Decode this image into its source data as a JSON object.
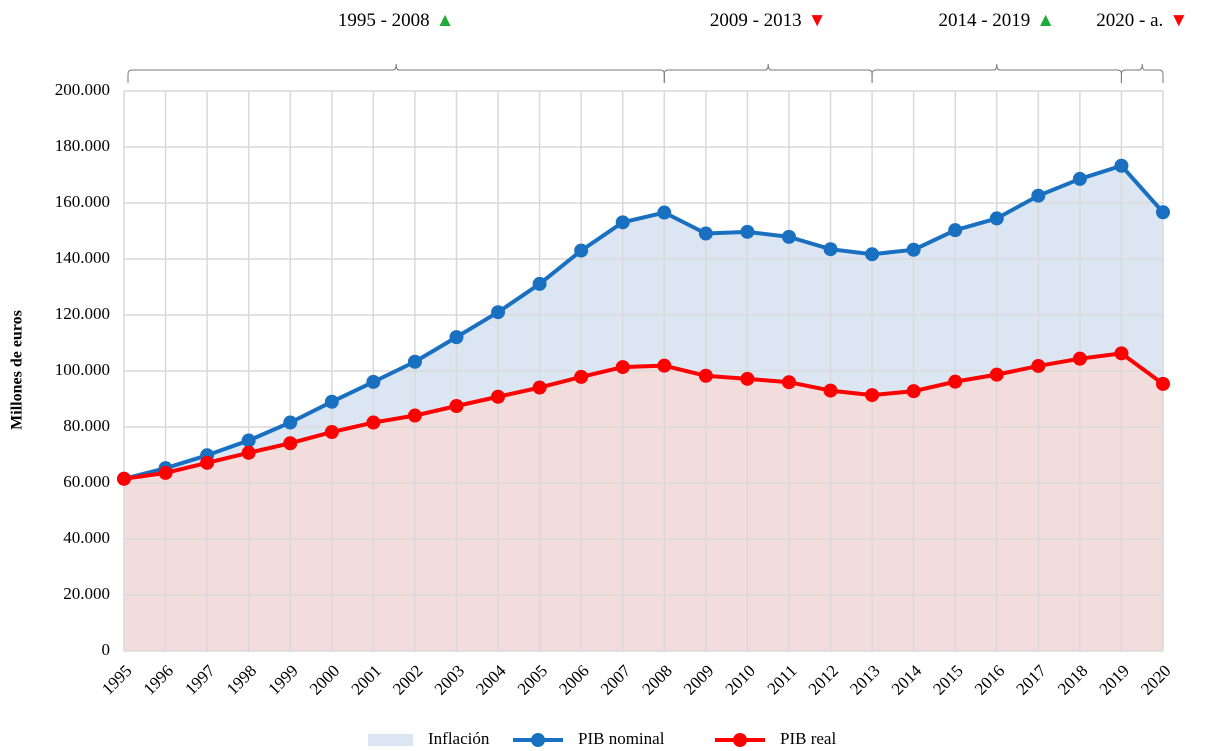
{
  "chart_data": {
    "type": "area-line",
    "y_label": "Millones de euros",
    "periods": [
      {
        "label": "1995 - 2008",
        "arrow": "▲",
        "arrow_color": "#1faa3a"
      },
      {
        "label": "2009 - 2013",
        "arrow": "▼",
        "arrow_color": "#ff0000"
      },
      {
        "label": "2014 - 2019",
        "arrow": "▲",
        "arrow_color": "#1faa3a"
      },
      {
        "label": "2020 - a.",
        "arrow": "▼",
        "arrow_color": "#ff0000"
      }
    ],
    "categories": [
      "1995",
      "1996",
      "1997",
      "1998",
      "1999",
      "2000",
      "2001",
      "2002",
      "2003",
      "2004",
      "2005",
      "2006",
      "2007",
      "2008",
      "2009",
      "2010",
      "2011",
      "2012",
      "2013",
      "2014",
      "2015",
      "2016",
      "2017",
      "2018",
      "2019",
      "2020"
    ],
    "area_label": "Inflación",
    "area_color": "#dce6f2",
    "series": [
      {
        "name": "PIB nominal",
        "color": "#1a70c0",
        "values": [
          61500,
          65300,
          69900,
          75200,
          81600,
          89000,
          96100,
          103300,
          112100,
          121000,
          131100,
          143000,
          153100,
          156600,
          149100,
          149700,
          147900,
          143500,
          141700,
          143300,
          150300,
          154500,
          162600,
          168600,
          173300,
          156700
        ]
      },
      {
        "name": "PIB real",
        "color": "#ff0000",
        "fill": "#f2dcdc",
        "values": [
          61500,
          63600,
          67200,
          70800,
          74200,
          78200,
          81600,
          84100,
          87500,
          90800,
          94100,
          97900,
          101400,
          101900,
          98300,
          97200,
          96000,
          93000,
          91400,
          92800,
          96200,
          98700,
          101800,
          104400,
          106300,
          95400
        ]
      }
    ],
    "ylim": [
      0,
      200000
    ],
    "yticks": [
      0,
      {
        "value": 20000,
        "label": "20.000"
      },
      {
        "value": 40000,
        "label": "40.000"
      },
      {
        "value": 60000,
        "label": "60.000"
      },
      {
        "value": 80000,
        "label": "80.000"
      },
      {
        "value": 100000,
        "label": "100.000"
      },
      {
        "value": 120000,
        "label": "120.000"
      },
      {
        "value": 140000,
        "label": "140.000"
      },
      {
        "value": 160000,
        "label": "160.000"
      },
      {
        "value": 180000,
        "label": "180.000"
      },
      {
        "value": 200000,
        "label": "200.000"
      }
    ],
    "grid": true
  }
}
